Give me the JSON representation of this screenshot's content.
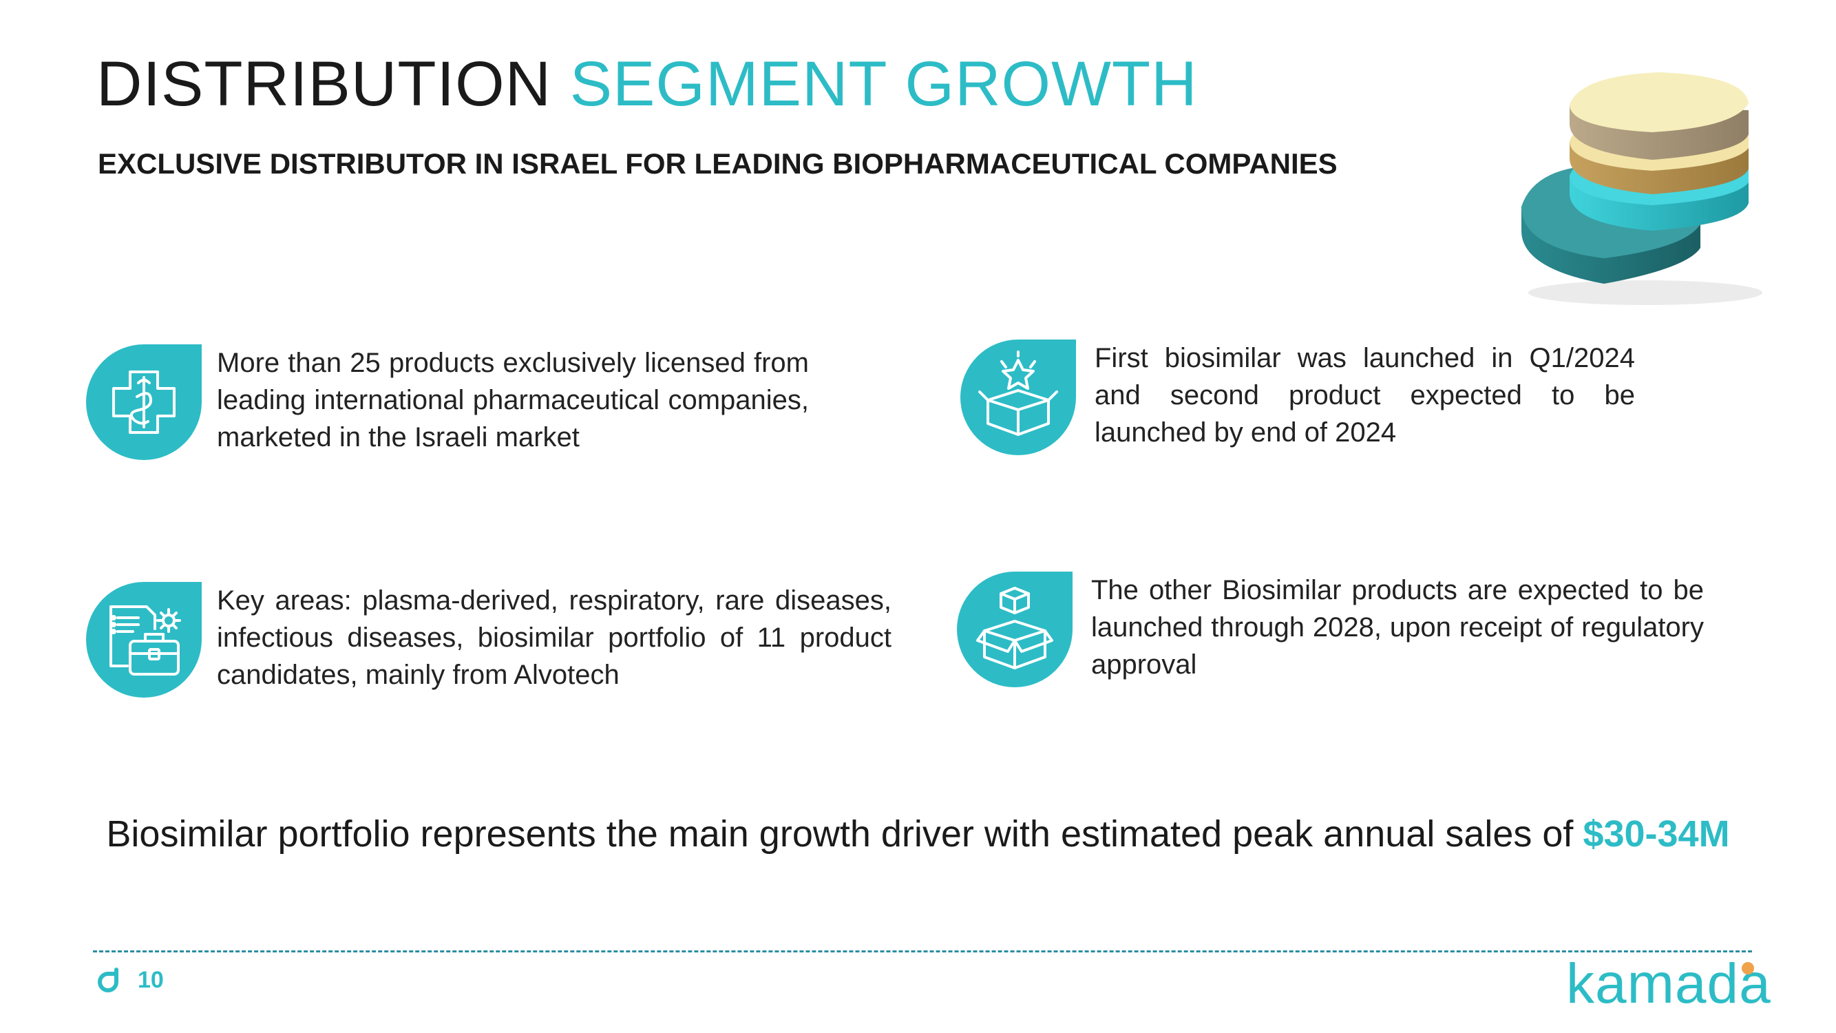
{
  "header": {
    "title_main": "DISTRIBUTION",
    "title_accent": "SEGMENT GROWTH",
    "subtitle": "EXCLUSIVE DISTRIBUTOR IN ISRAEL FOR LEADING BIOPHARMACEUTICAL COMPANIES"
  },
  "decoration": {
    "icon": "stacked-layers-illustration"
  },
  "items": [
    {
      "icon": "medical-cross-icon",
      "text": "More than 25 products exclusively licensed from leading international pharmaceutical companies, marketed in the Israeli market"
    },
    {
      "icon": "launch-box-icon",
      "text": "First biosimilar was launched in Q1/2024 and second product expected to be launched by end of 2024"
    },
    {
      "icon": "portfolio-briefcase-icon",
      "text": "Key areas: plasma-derived, respiratory, rare diseases, infectious diseases, biosimilar portfolio of 11 product candidates, mainly from Alvotech"
    },
    {
      "icon": "boxes-icon",
      "text": "The other Biosimilar products are expected to be launched through 2028, upon receipt of regulatory approval"
    }
  ],
  "callout": {
    "text": "Biosimilar portfolio represents the main growth driver with estimated peak annual sales of",
    "amount": "$30-34M"
  },
  "footer": {
    "page_number": "10",
    "logo_text": "kamada"
  },
  "colors": {
    "accent": "#2dbcc6",
    "dark_teal": "#1f6f73",
    "cream": "#f5eab3",
    "tan": "#c9b58e",
    "logo_dot": "#f0a24b"
  }
}
